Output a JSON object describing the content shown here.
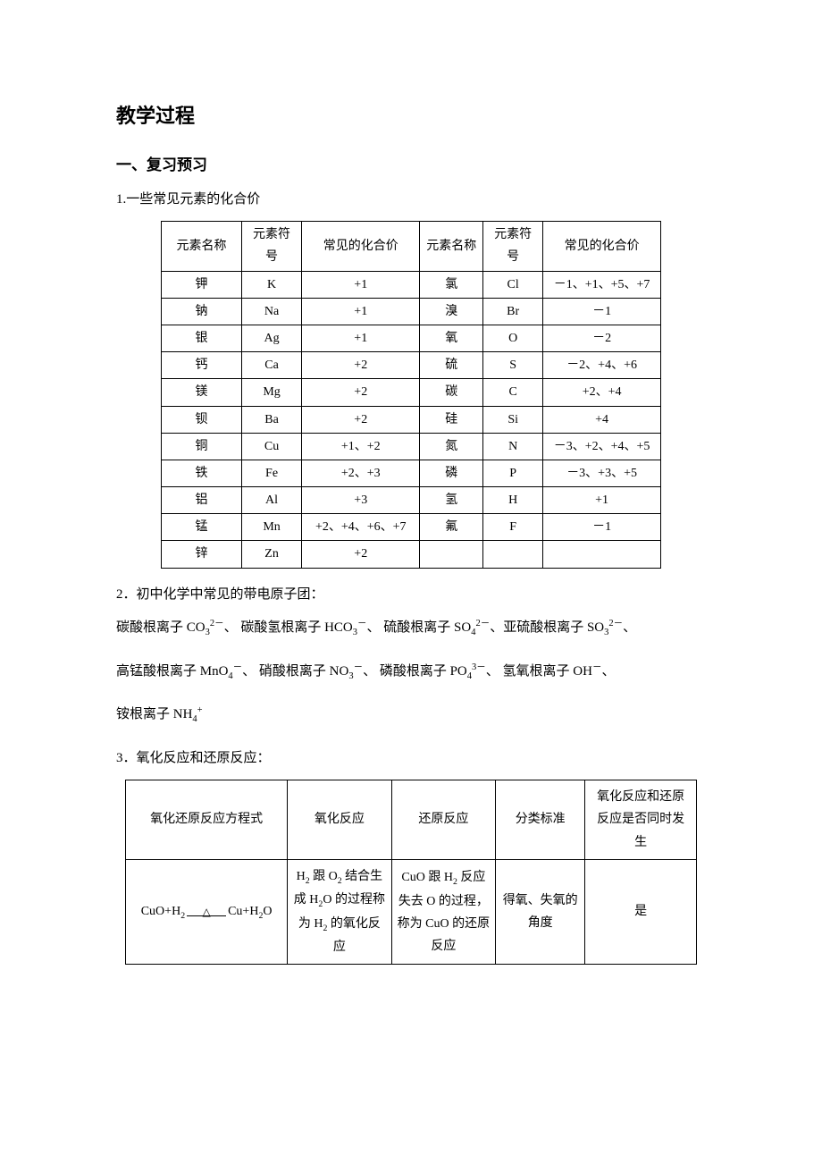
{
  "headings": {
    "h1": "教学过程",
    "h2": "一、复习预习"
  },
  "section1": {
    "title": "1.一些常见元素的化合价",
    "headers": {
      "name1": "元素名称",
      "sym1": "元素符号",
      "val1": "常见的化合价",
      "name2": "元素名称",
      "sym2": "元素符号",
      "val2": "常见的化合价"
    },
    "rows": [
      {
        "n1": "钾",
        "s1": "K",
        "v1": "+1",
        "n2": "氯",
        "s2": "Cl",
        "v2": "－1、+1、+5、+7"
      },
      {
        "n1": "钠",
        "s1": "Na",
        "v1": "+1",
        "n2": "溴",
        "s2": "Br",
        "v2": "－1"
      },
      {
        "n1": "银",
        "s1": "Ag",
        "v1": "+1",
        "n2": "氧",
        "s2": "O",
        "v2": "－2"
      },
      {
        "n1": "钙",
        "s1": "Ca",
        "v1": "+2",
        "n2": "硫",
        "s2": "S",
        "v2": "－2、+4、+6"
      },
      {
        "n1": "镁",
        "s1": "Mg",
        "v1": "+2",
        "n2": "碳",
        "s2": "C",
        "v2": "+2、+4"
      },
      {
        "n1": "钡",
        "s1": "Ba",
        "v1": "+2",
        "n2": "硅",
        "s2": "Si",
        "v2": "+4"
      },
      {
        "n1": "铜",
        "s1": "Cu",
        "v1": "+1、+2",
        "n2": "氮",
        "s2": "N",
        "v2": "－3、+2、+4、+5"
      },
      {
        "n1": "铁",
        "s1": "Fe",
        "v1": "+2、+3",
        "n2": "磷",
        "s2": "P",
        "v2": "－3、+3、+5"
      },
      {
        "n1": "铝",
        "s1": "Al",
        "v1": "+3",
        "n2": "氢",
        "s2": "H",
        "v2": "+1"
      },
      {
        "n1": "锰",
        "s1": "Mn",
        "v1": "+2、+4、+6、+7",
        "n2": "氟",
        "s2": "F",
        "v2": "－1"
      },
      {
        "n1": "锌",
        "s1": "Zn",
        "v1": "+2",
        "n2": "",
        "s2": "",
        "v2": ""
      }
    ]
  },
  "section2": {
    "title": "2．初中化学中常见的带电原子团："
  },
  "section3": {
    "title": "3．氧化反应和还原反应：",
    "headers": {
      "eq": "氧化还原反应方程式",
      "ox": "氧化反应",
      "rd": "还原反应",
      "std": "分类标准",
      "same": "氧化反应和还原反应是否同时发生"
    },
    "row": {
      "std": "得氧、失氧的角度",
      "same": "是"
    }
  }
}
